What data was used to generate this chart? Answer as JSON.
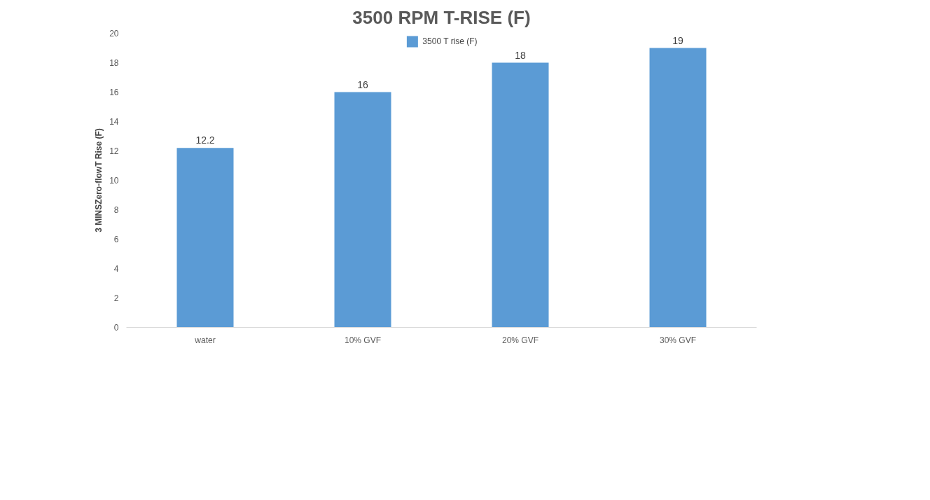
{
  "chart_data": {
    "type": "bar",
    "title": "3500 RPM T-RISE (F)",
    "ylabel": "3 MINSZero-flowT Rise (F)",
    "categories": [
      "water",
      "10% GVF",
      "20% GVF",
      "30% GVF"
    ],
    "series": [
      {
        "name": "3500 T rise (F)",
        "color": "#5b9bd5",
        "values": [
          12.2,
          16,
          18,
          19
        ]
      }
    ],
    "ylim": [
      0,
      20
    ],
    "yticks": [
      0,
      2,
      4,
      6,
      8,
      10,
      12,
      14,
      16,
      18,
      20
    ],
    "grid": false,
    "legend": "top",
    "data_labels": true
  }
}
